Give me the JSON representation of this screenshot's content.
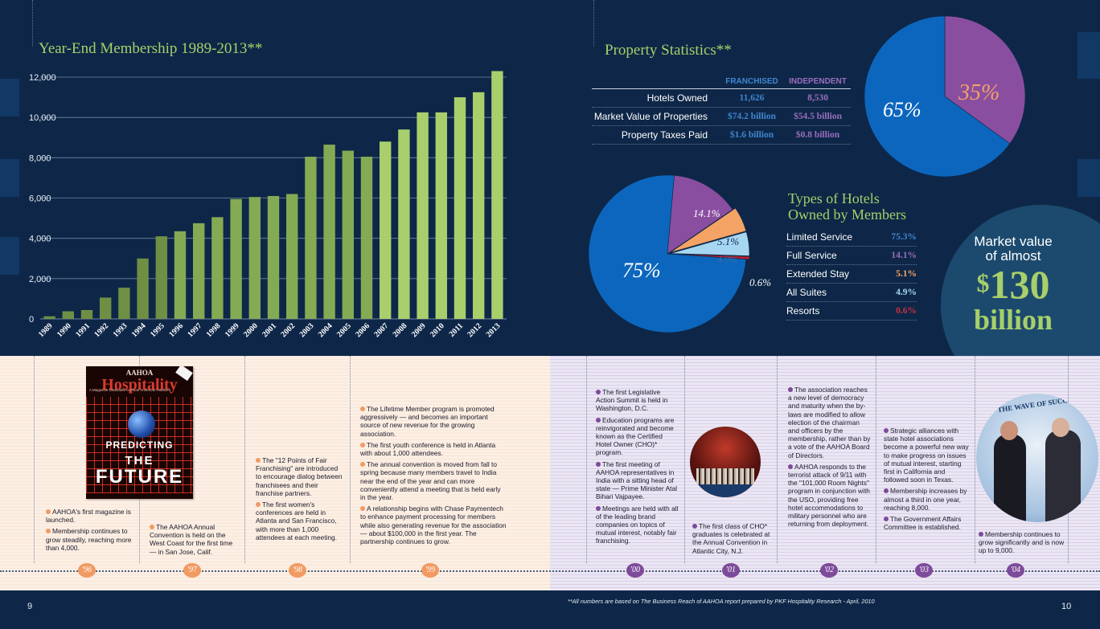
{
  "membership": {
    "title": "Year-End Membership 1989-2013**",
    "y_ticks": [
      "12,000",
      "10,000",
      "8,000",
      "6,000",
      "4,000",
      "2,000",
      "0"
    ]
  },
  "chart_data": [
    {
      "type": "bar",
      "title": "Year-End Membership 1989-2013**",
      "categories": [
        "1989",
        "1990",
        "1991",
        "1992",
        "1993",
        "1994",
        "1995",
        "1996",
        "1997",
        "1998",
        "1999",
        "2000",
        "2001",
        "2002",
        "2003",
        "2004",
        "2005",
        "2006",
        "2007",
        "2008",
        "2009",
        "2010",
        "2011",
        "2012",
        "2013"
      ],
      "values": [
        130,
        380,
        440,
        1060,
        1550,
        3000,
        4100,
        4350,
        4750,
        5050,
        5950,
        6050,
        6100,
        6200,
        8050,
        8650,
        8350,
        8050,
        8800,
        9400,
        10250,
        10250,
        11000,
        11250,
        12300
      ],
      "ylim": [
        0,
        12000
      ],
      "y_ticks": [
        0,
        2000,
        4000,
        6000,
        8000,
        10000,
        12000
      ],
      "grid": true,
      "colors": {
        "early": "#6f8f44",
        "mid": "#85aa54",
        "late": "#a9cf6d"
      }
    },
    {
      "type": "pie",
      "title": "Property Statistics**",
      "slices": [
        {
          "label": "65%",
          "value": 65,
          "color": "#0c66bd"
        },
        {
          "label": "35%",
          "value": 35,
          "color": "#8a4ea0"
        }
      ]
    },
    {
      "type": "pie",
      "title": "Types of Hotels Owned by Members",
      "slices": [
        {
          "label": "75%",
          "value": 75.3,
          "color": "#0c66bd"
        },
        {
          "label": "14.1%",
          "value": 14.1,
          "color": "#8a4ea0"
        },
        {
          "label": "5.1%",
          "value": 5.1,
          "color": "#f4a364"
        },
        {
          "label": "4.9%",
          "value": 4.9,
          "color": "#a7d6f2"
        },
        {
          "label": "0.6%",
          "value": 0.6,
          "color": "#b8202e"
        }
      ]
    }
  ],
  "property": {
    "title": "Property Statistics**",
    "col1": "FRANCHISED",
    "col2": "INDEPENDENT",
    "rows": [
      {
        "label": "Hotels Owned",
        "franchised": "11,626",
        "independent": "8,530"
      },
      {
        "label": "Market Value of Properties",
        "franchised": "$74.2 billion",
        "independent": "$54.5 billion"
      },
      {
        "label": "Property Taxes Paid",
        "franchised": "$1.6 billion",
        "independent": "$0.8 billion"
      }
    ],
    "pie_labels": {
      "franchised": "65%",
      "independent": "35%"
    }
  },
  "types": {
    "title_line1": "Types of Hotels",
    "title_line2": "Owned by Members",
    "rows": [
      {
        "label": "Limited Service",
        "value": "75.3%"
      },
      {
        "label": "Full Service",
        "value": "14.1%"
      },
      {
        "label": "Extended Stay",
        "value": "5.1%"
      },
      {
        "label": "All Suites",
        "value": "4.9%"
      },
      {
        "label": "Resorts",
        "value": "0.6%"
      }
    ],
    "pie_labels": [
      "75%",
      "14.1%",
      "5.1%",
      "4.9%",
      "0.6%"
    ]
  },
  "market_value": {
    "line1": "Market value",
    "line2": "of almost",
    "dollar": "$",
    "amount": "130",
    "unit": "billion"
  },
  "colors": {
    "navy": "#0e2748",
    "green": "#a8cf6a",
    "blue": "#0c66bd",
    "purple": "#8a4ea0",
    "orange": "#f19a62",
    "light_blue": "#7ab3e0",
    "light_purple": "#b394d1"
  },
  "magazine": {
    "title_small": "AAHOA",
    "title": "Hospitality",
    "subtitle": "A Magazine Dedicated to Asian American Hoteliers",
    "line1": "PREDICTING",
    "line2": "THE",
    "line3": "FUTURE"
  },
  "timeline": {
    "years": [
      "'96",
      "'97",
      "'98",
      "'99",
      "'00",
      "'01",
      "'02",
      "'03",
      "'04"
    ],
    "y96": [
      "AAHOA's first magazine is launched.",
      "Membership continues to grow steadily, reaching more than 4,000."
    ],
    "y97": [
      "The AAHOA Annual Convention is held on the West Coast for the first time — in San Jose, Calif."
    ],
    "y98": [
      "The \"12 Points of Fair Franchising\" are introduced to encourage dialog between franchisees and their franchise partners.",
      "The first women's conferences are held in Atlanta and San Francisco, with more than 1,000 attendees at each meeting."
    ],
    "y99": [
      "The Lifetime Member program is promoted aggressively — and becomes an important source of new revenue for the growing association.",
      "The first youth conference is held in Atlanta with about 1,000 attendees.",
      "The annual convention is moved from fall to spring because many members travel to India near the end of the year and can more conveniently attend a meeting that is held early in the year.",
      "A relationship begins with Chase Paymentech to enhance payment processing for members while also generating revenue for the association — about $100,000 in the first year. The partnership continues to grow."
    ],
    "y00": [
      "The first Legislative Action Summit is held in Washington, D.C.",
      "Education programs are reinvigorated and become known as the Certified Hotel Owner (CHO)* program.",
      "The first meeting of AAHOA representatives in India with a sitting head of state — Prime Minister Atal Bihari Vajpayee.",
      "Meetings are held with all of the leading brand companies on topics of mutual interest, notably fair franchising."
    ],
    "y01": [
      "The first class of CHO* graduates is celebrated at the Annual Convention in Atlantic City, N.J."
    ],
    "y02": [
      "The association reaches a new level of democracy and maturity when the by-laws are modified to allow election of the chairman and officers by the membership, rather than by a vote of the AAHOA Board of Directors.",
      "AAHOA responds to the terrorist attack of 9/11 with the \"101,000 Room Nights\" program in conjunction with the USO, providing free hotel accommodations to military personnel who are returning from deployment."
    ],
    "y03": [
      "Strategic alliances with state hotel associations become a powerful new way to make progress on issues of mutual interest, starting first in California and followed soon in Texas.",
      "Membership increases by almost a third in one year, reaching 8,000.",
      "The Government Affairs Committee is established."
    ],
    "y04": [
      "Membership continues to grow significantly and is now up to 9,000."
    ],
    "photo_banner": "THE WAVE OF SUCCESS"
  },
  "footer": {
    "page_left": "9",
    "page_right": "10",
    "footnote": "**All numbers are based on The Business Reach of AAHOA report prepared by PKF Hospitality Research - April, 2010"
  }
}
